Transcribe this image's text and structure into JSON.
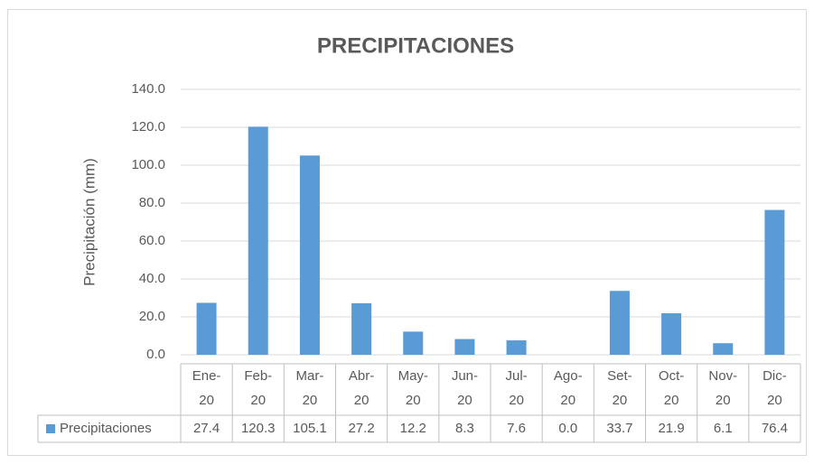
{
  "chart_data": {
    "type": "bar",
    "title": "PRECIPITACIONES",
    "y_label": "Precipitación (mm)",
    "categories": [
      "Ene-20",
      "Feb-20",
      "Mar-20",
      "Abr-20",
      "May-20",
      "Jun-20",
      "Jul-20",
      "Ago-20",
      "Set-20",
      "Oct-20",
      "Nov-20",
      "Dic-20"
    ],
    "series": [
      {
        "name": "Precipitaciones",
        "color": "#5b9bd5",
        "values": [
          27.4,
          120.3,
          105.1,
          27.2,
          12.2,
          8.3,
          7.6,
          0,
          33.7,
          21.9,
          6.1,
          76.4
        ],
        "value_labels": [
          "27.4",
          "120.3",
          "105.1",
          "27.2",
          "12.2",
          "8.3",
          "7.6",
          "0.0",
          "33.7",
          "21.9",
          "6.1",
          "76.4"
        ]
      }
    ],
    "ylim": [
      0,
      140
    ],
    "yticks": [
      {
        "value": 0,
        "label": "0.0"
      },
      {
        "value": 20,
        "label": "20.0"
      },
      {
        "value": 40,
        "label": "40.0"
      },
      {
        "value": 60,
        "label": "60.0"
      },
      {
        "value": 80,
        "label": "80.0"
      },
      {
        "value": 100,
        "label": "100.0"
      },
      {
        "value": 120,
        "label": "120.0"
      },
      {
        "value": 140,
        "label": "140.0"
      }
    ],
    "grid": true,
    "data_table": true
  }
}
